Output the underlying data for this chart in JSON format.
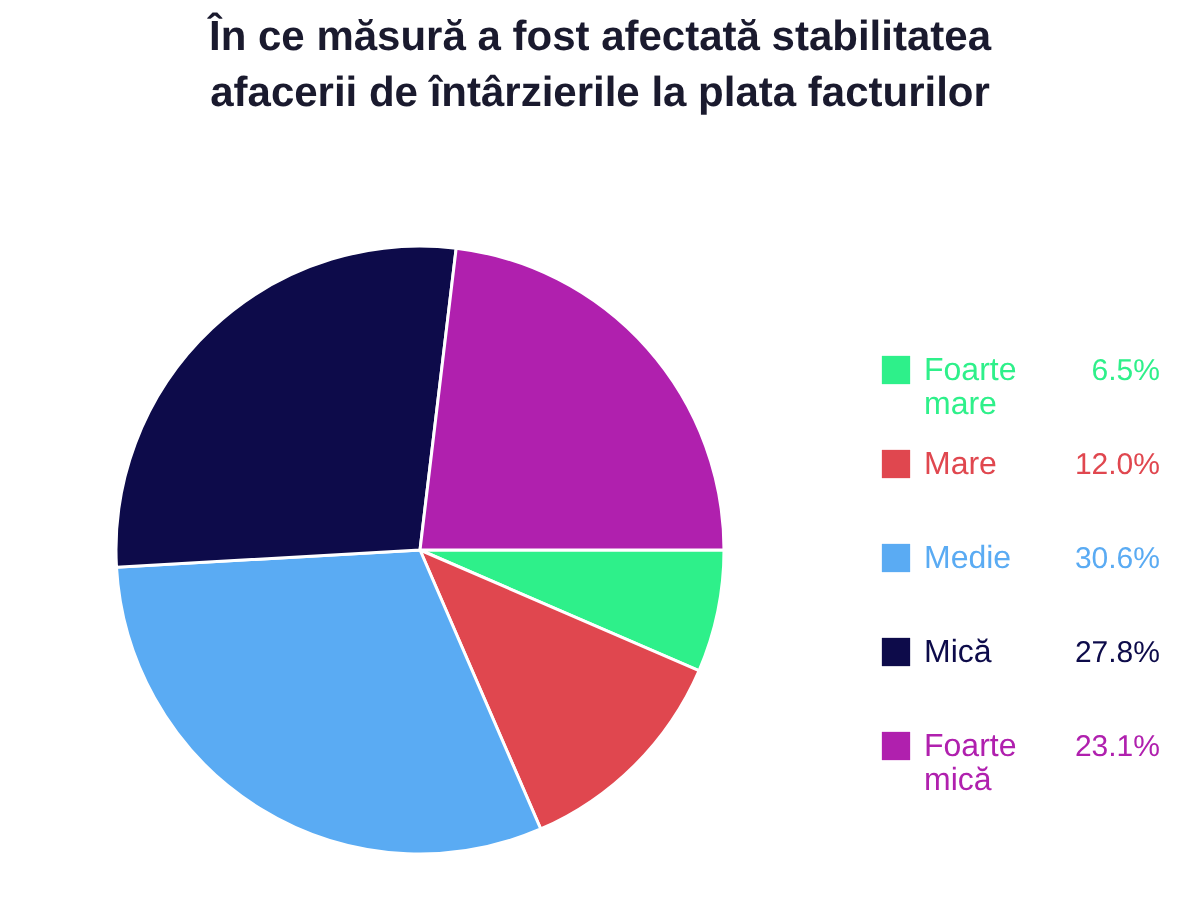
{
  "chart_data": {
    "type": "pie",
    "title": "În ce măsură a fost afectată stabilitatea afacerii de întârzierile la plata facturilor",
    "categories": [
      "Foarte mare",
      "Mare",
      "Medie",
      "Mică",
      "Foarte mică"
    ],
    "values": [
      6.5,
      12.0,
      30.6,
      27.8,
      23.1
    ],
    "value_labels": [
      "6.5%",
      "12.0%",
      "30.6%",
      "27.8%",
      "23.1%"
    ],
    "colors": [
      "#2ef08a",
      "#e0474f",
      "#5aabf3",
      "#0d0b4a",
      "#b020ae"
    ],
    "legend": "right"
  }
}
